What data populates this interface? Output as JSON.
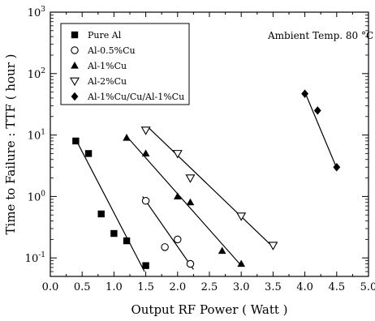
{
  "chart_data": {
    "type": "scatter",
    "title": "",
    "xlabel": "Output RF Power ( Watt )",
    "ylabel": "Time to Failure : TTF ( hour )",
    "xlim": [
      0.0,
      5.0
    ],
    "ylim": [
      0.05,
      1000
    ],
    "y_scale": "log",
    "x_ticks": [
      "0.0",
      "0.5",
      "1.0",
      "1.5",
      "2.0",
      "2.5",
      "3.0",
      "3.5",
      "4.0",
      "4.5",
      "5.0"
    ],
    "y_tick_labels": [
      {
        "value": 0.1,
        "base": "10",
        "exp": "-1"
      },
      {
        "value": 1,
        "base": "10",
        "exp": "0"
      },
      {
        "value": 10,
        "base": "10",
        "exp": "1"
      },
      {
        "value": 100,
        "base": "10",
        "exp": "2"
      },
      {
        "value": 1000,
        "base": "10",
        "exp": "3"
      }
    ],
    "annotation": "Ambient Temp. 80 °C",
    "grid": false,
    "legend_position": "top-left",
    "series": [
      {
        "name": "Pure Al",
        "marker": "filled-square",
        "points": [
          [
            0.4,
            8
          ],
          [
            0.6,
            5
          ],
          [
            0.8,
            0.52
          ],
          [
            1.0,
            0.25
          ],
          [
            1.2,
            0.19
          ],
          [
            1.5,
            0.075
          ]
        ],
        "fit": [
          [
            0.4,
            8.5
          ],
          [
            1.48,
            0.06
          ]
        ]
      },
      {
        "name": "Al-0.5%Cu",
        "marker": "open-circle",
        "points": [
          [
            1.5,
            0.85
          ],
          [
            1.8,
            0.15
          ],
          [
            2.0,
            0.2
          ],
          [
            2.2,
            0.08
          ]
        ],
        "fit": [
          [
            1.45,
            1.0
          ],
          [
            2.25,
            0.065
          ]
        ]
      },
      {
        "name": "Al-1%Cu",
        "marker": "filled-triangle",
        "points": [
          [
            1.2,
            9
          ],
          [
            1.5,
            5
          ],
          [
            2.0,
            1.0
          ],
          [
            2.2,
            0.8
          ],
          [
            2.7,
            0.13
          ],
          [
            3.0,
            0.08
          ]
        ],
        "fit": [
          [
            1.2,
            9.5
          ],
          [
            3.0,
            0.075
          ]
        ]
      },
      {
        "name": "Al-2%Cu",
        "marker": "open-triangle-down",
        "points": [
          [
            1.5,
            12
          ],
          [
            2.0,
            5
          ],
          [
            2.2,
            2.0
          ],
          [
            3.0,
            0.48
          ],
          [
            3.5,
            0.16
          ]
        ],
        "fit": [
          [
            1.55,
            13
          ],
          [
            3.5,
            0.15
          ]
        ]
      },
      {
        "name": "Al-1%Cu/Cu/Al-1%Cu",
        "marker": "filled-diamond",
        "points": [
          [
            4.0,
            47
          ],
          [
            4.2,
            25
          ],
          [
            4.5,
            3.0
          ]
        ],
        "fit": [
          [
            4.0,
            50
          ],
          [
            4.5,
            2.9
          ]
        ]
      }
    ]
  }
}
